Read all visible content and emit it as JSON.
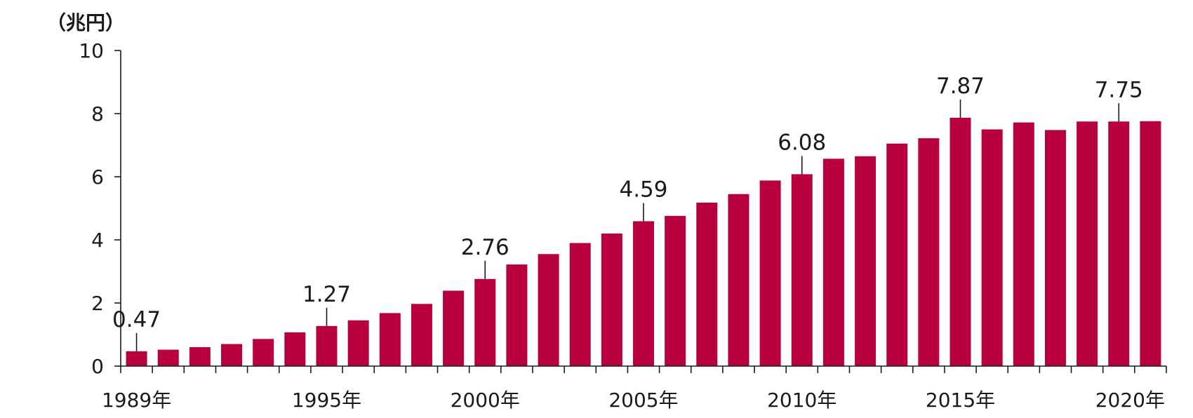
{
  "chart_data": {
    "type": "bar",
    "ylabel": "（兆円）",
    "ylim": [
      0,
      10
    ],
    "yticks": [
      0,
      2,
      4,
      6,
      8,
      10
    ],
    "grid": false,
    "bar_color": "#B8003F",
    "x": [
      1989,
      1990,
      1991,
      1992,
      1993,
      1994,
      1995,
      1996,
      1997,
      1998,
      1999,
      2000,
      2001,
      2002,
      2003,
      2004,
      2005,
      2006,
      2007,
      2008,
      2009,
      2010,
      2011,
      2012,
      2013,
      2014,
      2015,
      2016,
      2017,
      2018,
      2019,
      2020,
      2021
    ],
    "x_tick_labels": [
      {
        "year": 1989,
        "label": "1989年"
      },
      {
        "year": 1995,
        "label": "1995年"
      },
      {
        "year": 2000,
        "label": "2000年"
      },
      {
        "year": 2005,
        "label": "2005年"
      },
      {
        "year": 2010,
        "label": "2010年"
      },
      {
        "year": 2015,
        "label": "2015年"
      },
      {
        "year": 2020,
        "label": "2020年"
      }
    ],
    "values": [
      0.47,
      0.52,
      0.6,
      0.7,
      0.86,
      1.07,
      1.27,
      1.45,
      1.68,
      1.97,
      2.39,
      2.76,
      3.22,
      3.55,
      3.9,
      4.2,
      4.59,
      4.76,
      5.18,
      5.45,
      5.88,
      6.08,
      6.57,
      6.65,
      7.05,
      7.22,
      7.87,
      7.5,
      7.72,
      7.48,
      7.75,
      7.75,
      7.76
    ],
    "annotations": [
      {
        "year": 1989,
        "value": 0.47,
        "label": "0.47"
      },
      {
        "year": 1995,
        "value": 1.27,
        "label": "1.27"
      },
      {
        "year": 2000,
        "value": 2.76,
        "label": "2.76"
      },
      {
        "year": 2005,
        "value": 4.59,
        "label": "4.59"
      },
      {
        "year": 2010,
        "value": 6.08,
        "label": "6.08"
      },
      {
        "year": 2015,
        "value": 7.87,
        "label": "7.87"
      },
      {
        "year": 2020,
        "value": 7.75,
        "label": "7.75"
      }
    ]
  }
}
